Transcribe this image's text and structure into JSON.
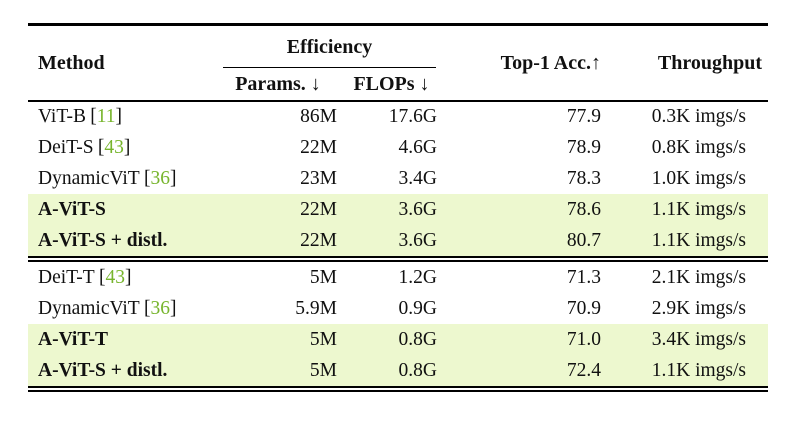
{
  "table": {
    "header": {
      "method": "Method",
      "efficiency": "Efficiency",
      "params": "Params. ↓",
      "flops": "FLOPs ↓",
      "top1": "Top-1 Acc.↑",
      "throughput": "Throughput"
    },
    "colors": {
      "highlight": "#edf8cf",
      "citation_green": "#77b52d"
    },
    "sections": [
      {
        "rows": [
          {
            "method": "ViT-B",
            "cite": "11",
            "params": "86M",
            "flops": "17.6G",
            "top1": "77.9",
            "throughput": "0.3K imgs/s",
            "highlight": false
          },
          {
            "method": "DeiT-S",
            "cite": "43",
            "params": "22M",
            "flops": "4.6G",
            "top1": "78.9",
            "throughput": "0.8K imgs/s",
            "highlight": false
          },
          {
            "method": "DynamicViT",
            "cite": "36",
            "params": "23M",
            "flops": "3.4G",
            "top1": "78.3",
            "throughput": "1.0K imgs/s",
            "highlight": false
          },
          {
            "method": "A-ViT-S",
            "cite": null,
            "params": "22M",
            "flops": "3.6G",
            "top1": "78.6",
            "throughput": "1.1K imgs/s",
            "highlight": true
          },
          {
            "method": "A-ViT-S + distl.",
            "cite": null,
            "params": "22M",
            "flops": "3.6G",
            "top1": "80.7",
            "throughput": "1.1K imgs/s",
            "highlight": true
          }
        ]
      },
      {
        "rows": [
          {
            "method": "DeiT-T",
            "cite": "43",
            "params": "5M",
            "flops": "1.2G",
            "top1": "71.3",
            "throughput": "2.1K imgs/s",
            "highlight": false
          },
          {
            "method": "DynamicViT",
            "cite": "36",
            "params": "5.9M",
            "flops": "0.9G",
            "top1": "70.9",
            "throughput": "2.9K imgs/s",
            "highlight": false
          },
          {
            "method": "A-ViT-T",
            "cite": null,
            "params": "5M",
            "flops": "0.8G",
            "top1": "71.0",
            "throughput": "3.4K imgs/s",
            "highlight": true
          },
          {
            "method": "A-ViT-S + distl.",
            "cite": null,
            "params": "5M",
            "flops": "0.8G",
            "top1": "72.4",
            "throughput": "1.1K imgs/s",
            "highlight": true
          }
        ]
      }
    ]
  }
}
